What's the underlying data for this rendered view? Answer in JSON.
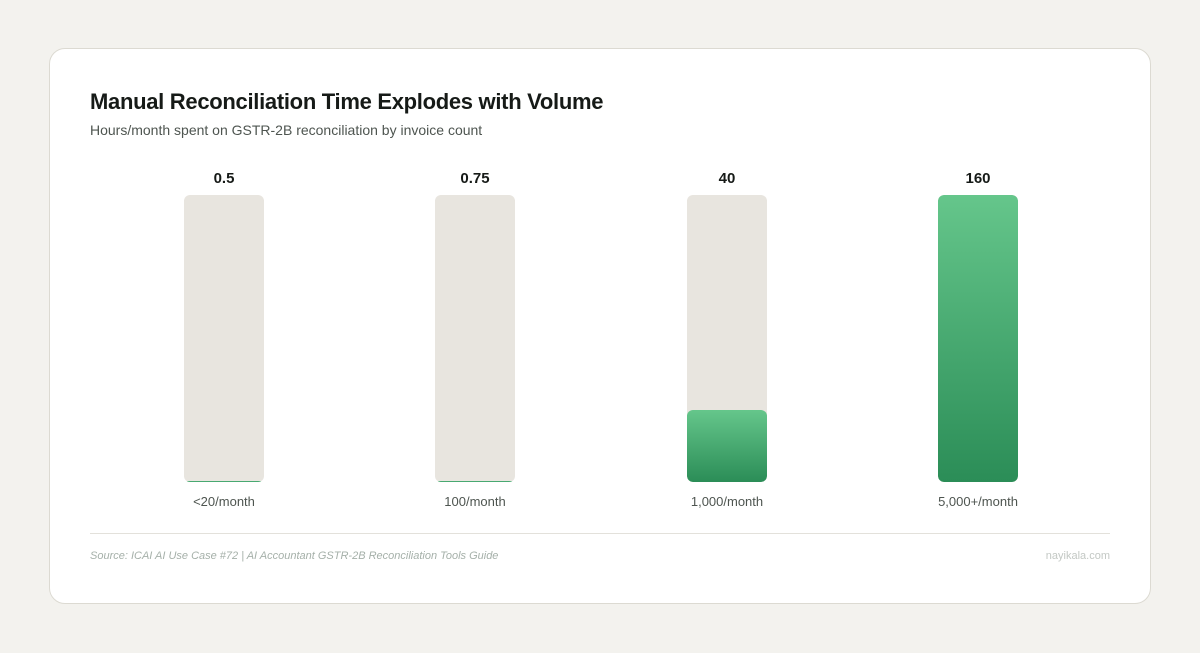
{
  "chart_data": {
    "type": "bar",
    "title": "Manual Reconciliation Time Explodes with Volume",
    "subtitle": "Hours/month spent on GSTR-2B reconciliation by invoice count",
    "categories": [
      "<20/month",
      "100/month",
      "1,000/month",
      "5,000+/month"
    ],
    "values": [
      0.5,
      0.75,
      40,
      160
    ],
    "value_labels": [
      "0.5",
      "0.75",
      "40",
      "160"
    ],
    "ylim": [
      0,
      160
    ],
    "grid": false,
    "colors": {
      "fill_top": "#65c68b",
      "fill_bottom": "#2b8d57",
      "track": "#e8e5df"
    }
  },
  "footer": {
    "source": "Source: ICAI AI Use Case #72 | AI Accountant GSTR-2B Reconciliation Tools Guide",
    "brand": "nayikala.com"
  }
}
